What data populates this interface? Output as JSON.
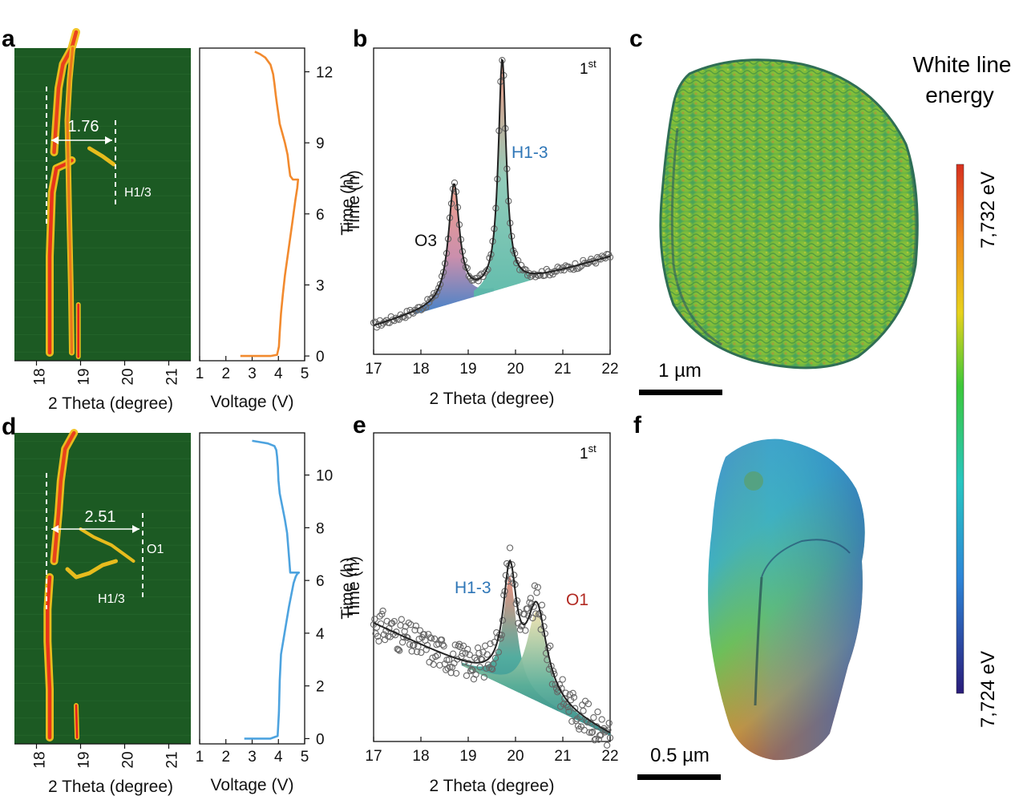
{
  "panels": {
    "a": "a",
    "b": "b",
    "c": "c",
    "d": "d",
    "e": "e",
    "f": "f"
  },
  "colors": {
    "map_bg": "#1c5a23",
    "ridge_yellow": "#f2c21e",
    "ridge_red": "#e8231c",
    "voltage_a": "#f28a2e",
    "voltage_d": "#4da3df",
    "fit_o3": "#e8907a",
    "fit_h13": "#6cc4b0",
    "fit_o1": "#e6d8a2",
    "baseline_fill": "#3b7fc4",
    "label_blue": "#2e76b7",
    "label_red": "#b22a22"
  },
  "chart_data": [
    {
      "id": "a-map",
      "type": "heatmap",
      "xlabel": "2 Theta (degree)",
      "xticks": [
        "18",
        "19",
        "20",
        "21"
      ],
      "xlim": [
        17.5,
        21.5
      ],
      "ylim": [
        0,
        13
      ],
      "annotations": {
        "distance": "1.76",
        "phase": "H1/3"
      }
    },
    {
      "id": "a-voltage",
      "type": "line",
      "xlabel": "Voltage (V)",
      "ylabel": "Time (h)",
      "xticks": [
        "1",
        "2",
        "3",
        "4",
        "5"
      ],
      "yticks": [
        "0",
        "3",
        "6",
        "9",
        "12"
      ],
      "xlim": [
        1,
        5
      ],
      "ylim": [
        -0.2,
        13
      ],
      "series": [
        {
          "x": [
            2.55,
            3.7,
            3.95,
            4.02,
            4.05,
            4.1,
            4.17,
            4.25,
            4.35,
            4.45,
            4.55,
            4.65,
            4.72,
            4.75,
            4.55,
            4.45,
            4.4,
            4.35,
            4.25,
            4.15,
            4.05,
            4.0,
            3.95,
            3.9,
            3.85,
            3.8,
            3.7,
            3.5,
            3.3,
            3.1
          ],
          "y": [
            0,
            0,
            0.05,
            0.4,
            1.0,
            1.8,
            2.6,
            3.4,
            4.2,
            5.0,
            5.8,
            6.6,
            7.1,
            7.45,
            7.45,
            7.6,
            8.0,
            8.5,
            9.0,
            9.4,
            9.8,
            10.2,
            10.6,
            11.0,
            11.5,
            11.9,
            12.3,
            12.6,
            12.75,
            12.85
          ]
        }
      ]
    },
    {
      "id": "b-fit",
      "type": "scatter",
      "xlabel": "2 Theta (degree)",
      "xticks": [
        "17",
        "18",
        "19",
        "20",
        "21",
        "22"
      ],
      "xlim": [
        17,
        22
      ],
      "ylim": [
        0,
        1.1
      ],
      "annotation": "1st",
      "peaks": [
        {
          "name": "O3",
          "center": 18.7,
          "height": 0.42,
          "width": 0.14
        },
        {
          "name": "H1-3",
          "center": 19.72,
          "height": 0.82,
          "width": 0.1
        }
      ],
      "baseline": [
        0.1,
        0.05
      ]
    },
    {
      "id": "d-map",
      "type": "heatmap",
      "xlabel": "2 Theta (degree)",
      "xticks": [
        "18",
        "19",
        "20",
        "21"
      ],
      "xlim": [
        17.5,
        21.5
      ],
      "ylim": [
        0,
        11.5
      ],
      "annotations": {
        "distance": "2.51",
        "phase_upper": "O1",
        "phase_lower": "H1/3"
      }
    },
    {
      "id": "d-voltage",
      "type": "line",
      "xlabel": "Voltage (V)",
      "ylabel": "Time (h)",
      "xticks": [
        "1",
        "2",
        "3",
        "4",
        "5"
      ],
      "yticks": [
        "0",
        "2",
        "4",
        "6",
        "8",
        "10"
      ],
      "xlim": [
        1,
        5
      ],
      "ylim": [
        -0.2,
        11.6
      ],
      "series": [
        {
          "x": [
            2.7,
            3.7,
            3.97,
            4.02,
            4.05,
            4.1,
            4.2,
            4.3,
            4.4,
            4.5,
            4.58,
            4.66,
            4.72,
            4.78,
            4.45,
            4.42,
            4.38,
            4.33,
            4.25,
            4.15,
            4.05,
            4.0,
            3.98,
            3.95,
            3.92,
            3.85,
            3.6,
            3.3,
            3.0
          ],
          "y": [
            0,
            0,
            0.1,
            1.0,
            2.2,
            3.2,
            3.8,
            4.4,
            5.0,
            5.5,
            5.9,
            6.15,
            6.25,
            6.3,
            6.3,
            6.7,
            7.2,
            7.8,
            8.3,
            8.8,
            9.3,
            9.8,
            10.3,
            10.7,
            10.95,
            11.1,
            11.2,
            11.25,
            11.3
          ]
        }
      ]
    },
    {
      "id": "e-fit",
      "type": "scatter",
      "xlabel": "2 Theta (degree)",
      "xticks": [
        "17",
        "18",
        "19",
        "20",
        "21",
        "22"
      ],
      "xlim": [
        17,
        22
      ],
      "ylim": [
        0,
        1.1
      ],
      "annotation": "1st",
      "peaks": [
        {
          "name": "H1-3",
          "center": 19.88,
          "height": 0.4,
          "width": 0.17
        },
        {
          "name": "O1",
          "center": 20.45,
          "height": 0.32,
          "width": 0.26
        }
      ],
      "baseline": [
        0.42,
        -0.08
      ]
    }
  ],
  "particles": {
    "c_scale": "1 µm",
    "f_scale": "0.5 µm"
  },
  "colorbar": {
    "title_line1": "White line",
    "title_line2": "energy",
    "max_label": "7,732 eV",
    "min_label": "7,724 eV"
  },
  "text": {
    "time_label": "Time (h)",
    "b_o3": "O3",
    "b_h13": "H1-3",
    "e_h13": "H1-3",
    "e_o1": "O1",
    "sup_1": "1",
    "sup_st": "st"
  }
}
